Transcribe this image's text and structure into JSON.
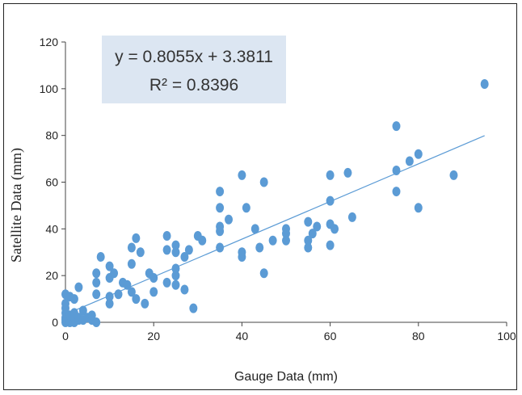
{
  "chart_data": {
    "type": "scatter",
    "xlabel": "Gauge Data (mm)",
    "ylabel": "Satellite Data (mm)",
    "xlim": [
      0,
      100
    ],
    "ylim": [
      0,
      120
    ],
    "x_ticks": [
      "0",
      "20",
      "40",
      "60",
      "80",
      "100"
    ],
    "y_ticks": [
      "0",
      "20",
      "40",
      "60",
      "80",
      "100",
      "120"
    ],
    "grid": false,
    "legend": "none",
    "annotation": {
      "equation": "y = 0.8055x + 3.3811",
      "r_squared": "R² = 0.8396",
      "background": "#dce6f2"
    },
    "trendline": {
      "slope": 0.8055,
      "intercept": 3.3811,
      "x_range": [
        0,
        95
      ],
      "color": "#5b9bd5"
    },
    "point_color": "#5b9bd5",
    "points": [
      [
        0,
        0
      ],
      [
        0,
        1
      ],
      [
        0,
        2
      ],
      [
        0,
        4
      ],
      [
        0,
        6
      ],
      [
        0,
        8
      ],
      [
        0,
        12
      ],
      [
        1,
        0
      ],
      [
        1,
        1
      ],
      [
        1,
        3
      ],
      [
        1,
        11
      ],
      [
        2,
        0
      ],
      [
        2,
        2
      ],
      [
        2,
        4
      ],
      [
        2,
        10
      ],
      [
        3,
        1
      ],
      [
        3,
        2
      ],
      [
        3,
        15
      ],
      [
        4,
        1
      ],
      [
        4,
        5
      ],
      [
        5,
        2
      ],
      [
        6,
        1
      ],
      [
        6,
        3
      ],
      [
        7,
        12
      ],
      [
        7,
        17
      ],
      [
        7,
        21
      ],
      [
        7,
        0
      ],
      [
        8,
        28
      ],
      [
        10,
        8
      ],
      [
        10,
        11
      ],
      [
        10,
        19
      ],
      [
        10,
        24
      ],
      [
        11,
        21
      ],
      [
        12,
        12
      ],
      [
        13,
        17
      ],
      [
        14,
        16
      ],
      [
        15,
        25
      ],
      [
        15,
        32
      ],
      [
        15,
        13
      ],
      [
        16,
        10
      ],
      [
        16,
        36
      ],
      [
        17,
        30
      ],
      [
        18,
        8
      ],
      [
        19,
        21
      ],
      [
        20,
        13
      ],
      [
        20,
        19
      ],
      [
        23,
        17
      ],
      [
        23,
        31
      ],
      [
        23,
        37
      ],
      [
        25,
        16
      ],
      [
        25,
        20
      ],
      [
        25,
        23
      ],
      [
        25,
        30
      ],
      [
        25,
        33
      ],
      [
        27,
        14
      ],
      [
        27,
        28
      ],
      [
        28,
        31
      ],
      [
        29,
        6
      ],
      [
        30,
        37
      ],
      [
        31,
        35
      ],
      [
        35,
        32
      ],
      [
        35,
        39
      ],
      [
        35,
        41
      ],
      [
        35,
        49
      ],
      [
        35,
        56
      ],
      [
        37,
        44
      ],
      [
        40,
        28
      ],
      [
        40,
        30
      ],
      [
        40,
        63
      ],
      [
        41,
        49
      ],
      [
        43,
        40
      ],
      [
        44,
        32
      ],
      [
        45,
        21
      ],
      [
        45,
        60
      ],
      [
        47,
        35
      ],
      [
        50,
        35
      ],
      [
        50,
        38
      ],
      [
        50,
        40
      ],
      [
        55,
        32
      ],
      [
        55,
        35
      ],
      [
        55,
        43
      ],
      [
        56,
        38
      ],
      [
        57,
        41
      ],
      [
        60,
        33
      ],
      [
        60,
        42
      ],
      [
        60,
        52
      ],
      [
        60,
        63
      ],
      [
        61,
        40
      ],
      [
        64,
        64
      ],
      [
        65,
        45
      ],
      [
        75,
        56
      ],
      [
        75,
        65
      ],
      [
        75,
        84
      ],
      [
        78,
        69
      ],
      [
        80,
        49
      ],
      [
        80,
        72
      ],
      [
        88,
        63
      ],
      [
        95,
        102
      ]
    ]
  }
}
